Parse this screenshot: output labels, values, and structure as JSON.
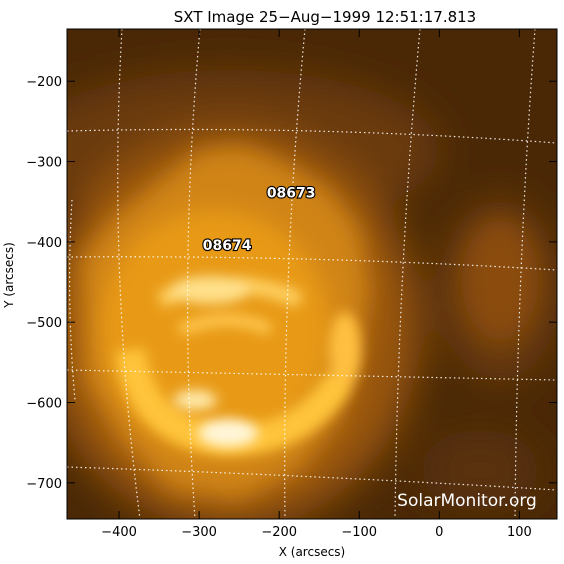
{
  "chart_data": {
    "type": "heatmap",
    "title": "SXT Image 25−Aug−1999 12:51:17.813",
    "xlabel": "X (arcsecs)",
    "ylabel": "Y (arcsecs)",
    "xlim": [
      -465,
      147
    ],
    "ylim": [
      -745,
      -135
    ],
    "xticks": [
      -400,
      -300,
      -200,
      -100,
      0,
      100
    ],
    "yticks": [
      -200,
      -300,
      -400,
      -500,
      -600,
      -700
    ],
    "xtick_labels": [
      "−400",
      "−300",
      "−200",
      "−100",
      "0",
      "100"
    ],
    "ytick_labels": [
      "−200",
      "−300",
      "−400",
      "−500",
      "−600",
      "−700"
    ],
    "grid": true,
    "colormap": "yohkoh-sxt-orange",
    "colors": {
      "dark": "#3a1e05",
      "mid": "#b86a0a",
      "bright": "#ffb020",
      "peak": "#fffbe8"
    },
    "annotations": [
      {
        "text": "08673",
        "x": -185,
        "y": -345
      },
      {
        "text": "08674",
        "x": -265,
        "y": -410
      }
    ],
    "watermark": "SolarMonitor.org"
  }
}
